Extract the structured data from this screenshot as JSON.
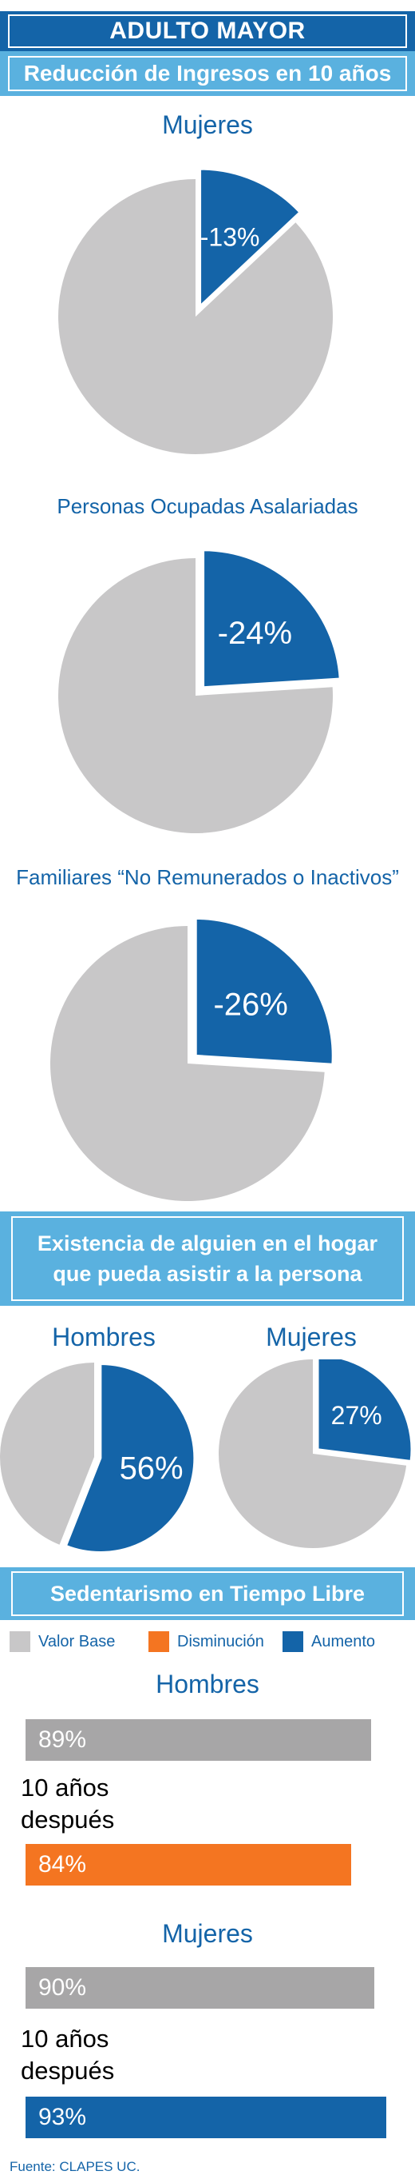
{
  "header": {
    "title": "ADULTO MAYOR",
    "subtitle": "Reducción de Ingresos en 10 años"
  },
  "colors": {
    "base": "#c8c7c8",
    "decrease": "#f47521",
    "increase": "#1464a8",
    "light_blue": "#5ab1df"
  },
  "chart_data": [
    {
      "type": "pie",
      "title": "Mujeres",
      "slices": [
        {
          "label": "-13%",
          "value": 13,
          "role": "aumento"
        },
        {
          "label": "",
          "value": 87,
          "role": "valor_base"
        }
      ]
    },
    {
      "type": "pie",
      "title": "Personas Ocupadas Asalariadas",
      "slices": [
        {
          "label": "-24%",
          "value": 24,
          "role": "aumento"
        },
        {
          "label": "",
          "value": 76,
          "role": "valor_base"
        }
      ]
    },
    {
      "type": "pie",
      "title": "Familiares “No Remunerados o Inactivos”",
      "slices": [
        {
          "label": "-26%",
          "value": 26,
          "role": "aumento"
        },
        {
          "label": "",
          "value": 74,
          "role": "valor_base"
        }
      ]
    },
    {
      "type": "pie",
      "title": "Hombres",
      "section": "Existencia de alguien en el hogar que pueda asistir a la persona",
      "slices": [
        {
          "label": "56%",
          "value": 56,
          "role": "aumento"
        },
        {
          "label": "",
          "value": 44,
          "role": "valor_base"
        }
      ]
    },
    {
      "type": "pie",
      "title": "Mujeres",
      "section": "Existencia de alguien en el hogar que pueda asistir a la persona",
      "slices": [
        {
          "label": "27%",
          "value": 27,
          "role": "aumento"
        },
        {
          "label": "",
          "value": 73,
          "role": "valor_base"
        }
      ]
    },
    {
      "type": "bar",
      "title": "Hombres",
      "section": "Sedentarismo en Tiempo Libre",
      "categories": [
        "",
        "10 años después"
      ],
      "values": [
        89,
        84
      ],
      "labels": [
        "89%",
        "84%"
      ],
      "roles": [
        "valor_base",
        "disminucion"
      ]
    },
    {
      "type": "bar",
      "title": "Mujeres",
      "section": "Sedentarismo en Tiempo Libre",
      "categories": [
        "",
        "10 años después"
      ],
      "values": [
        90,
        93
      ],
      "labels": [
        "90%",
        "93%"
      ],
      "roles": [
        "valor_base",
        "aumento"
      ]
    }
  ],
  "sections": {
    "asistir_line1": "Existencia de alguien en el hogar",
    "asistir_line2": "que pueda asistir a la persona",
    "sedentarismo": "Sedentarismo en Tiempo Libre"
  },
  "legend": {
    "base": "Valor Base",
    "decrease": "Disminución",
    "increase": "Aumento"
  },
  "after_line1": "10 años",
  "after_line2": "después",
  "footer": "Fuente: CLAPES UC."
}
